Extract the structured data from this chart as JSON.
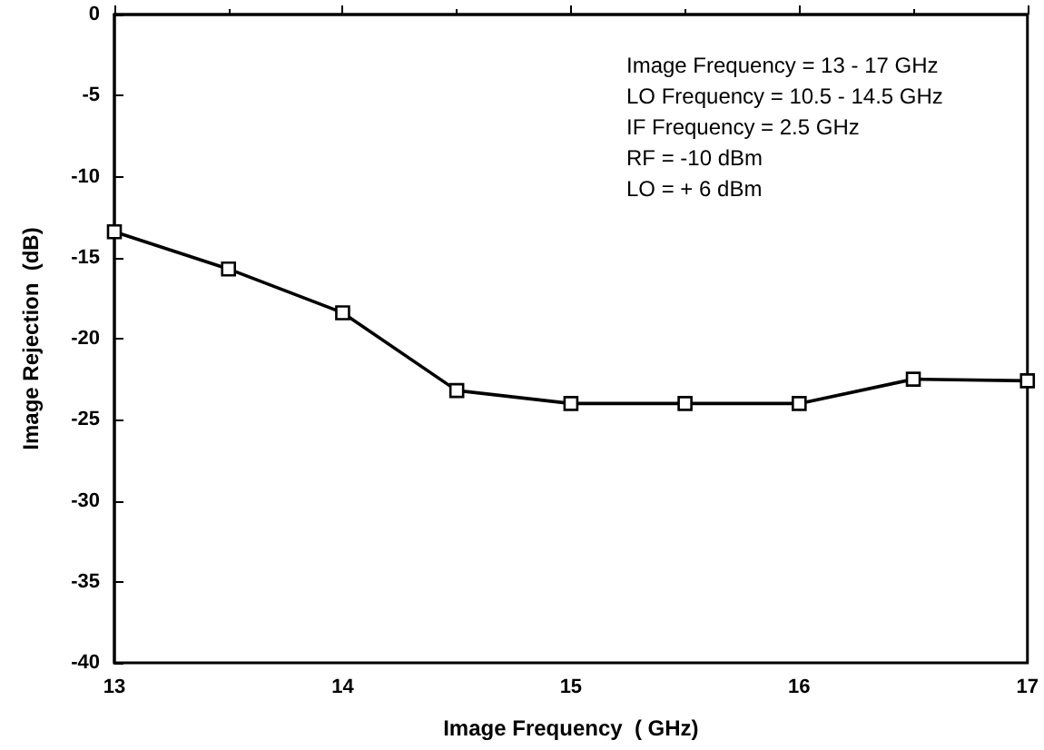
{
  "chart_data": {
    "type": "line",
    "xlabel": "Image Frequency  ( GHz)",
    "ylabel": "Image Rejection  (dB)",
    "x": [
      13,
      13.5,
      14,
      14.5,
      15,
      15.5,
      16,
      16.5,
      17
    ],
    "series": [
      {
        "color": "#000000",
        "values": [
          -13.4,
          -15.7,
          -18.4,
          -23.2,
          -24,
          -24,
          -24,
          -22.5,
          -22.6
        ]
      }
    ],
    "xlim": [
      13,
      17
    ],
    "xticks": [
      13,
      14,
      15,
      16,
      17
    ],
    "ylim": [
      -40,
      0
    ],
    "yticks": [
      -40,
      -35,
      -30,
      -25,
      -20,
      -15,
      -10,
      -5,
      0
    ],
    "marker": "square",
    "line_style": "solid",
    "annotations": [
      "Image Frequency = 13 - 17 GHz",
      "LO Frequency = 10.5 - 14.5 GHz",
      "IF Frequency = 2.5 GHz",
      "RF = -10 dBm",
      "LO = + 6 dBm"
    ]
  }
}
